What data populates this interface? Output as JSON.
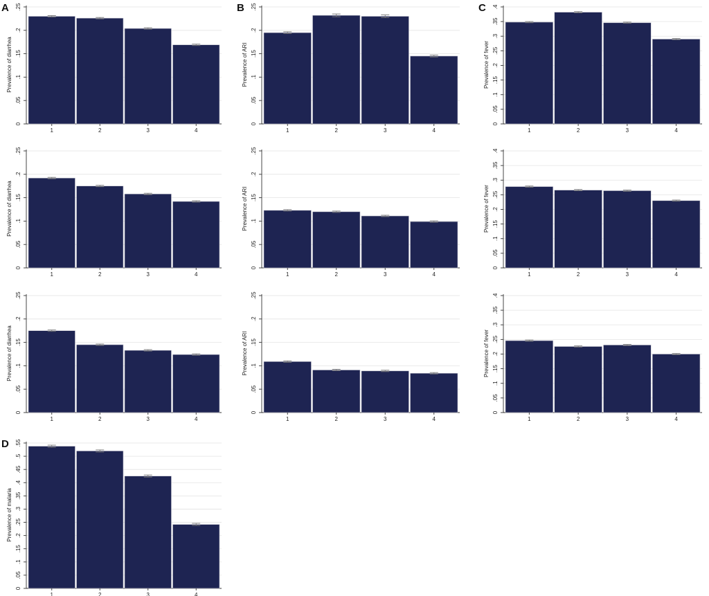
{
  "colors": {
    "bar": "#1e2452",
    "error_bar": "#777777",
    "grid": "#e3e3e3"
  },
  "chart_data": [
    {
      "id": "A1",
      "panel_letter": "A",
      "type": "bar",
      "ylabel": "Prevalence of diarrhea",
      "categories": [
        "1",
        "2",
        "3",
        "4"
      ],
      "values": [
        0.23,
        0.226,
        0.204,
        0.169
      ],
      "errors": [
        0.0015,
        0.0015,
        0.0015,
        0.0015
      ],
      "ylim": [
        0,
        0.25
      ],
      "yticks": [
        0,
        0.05,
        0.1,
        0.15,
        0.2,
        0.25
      ],
      "ytick_labels": [
        "0",
        ".05",
        ".1",
        ".15",
        ".2",
        ".25"
      ],
      "grid": true
    },
    {
      "id": "B1",
      "panel_letter": "B",
      "type": "bar",
      "ylabel": "Prevalence of ARI",
      "categories": [
        "1",
        "2",
        "3",
        "4"
      ],
      "values": [
        0.195,
        0.232,
        0.23,
        0.145
      ],
      "errors": [
        0.002,
        0.003,
        0.003,
        0.002
      ],
      "ylim": [
        0,
        0.25
      ],
      "yticks": [
        0,
        0.05,
        0.1,
        0.15,
        0.2,
        0.25
      ],
      "ytick_labels": [
        "0",
        ".05",
        ".1",
        ".15",
        ".2",
        ".25"
      ],
      "grid": true
    },
    {
      "id": "C1",
      "panel_letter": "C",
      "type": "bar",
      "ylabel": "Prevalence of fever",
      "categories": [
        "1",
        "2",
        "3",
        "4"
      ],
      "values": [
        0.348,
        0.382,
        0.346,
        0.29
      ],
      "errors": [
        0.002,
        0.002,
        0.002,
        0.002
      ],
      "ylim": [
        0,
        0.4
      ],
      "yticks": [
        0,
        0.05,
        0.1,
        0.15,
        0.2,
        0.25,
        0.3,
        0.35,
        0.4
      ],
      "ytick_labels": [
        "0",
        ".05",
        ".1",
        ".15",
        ".2",
        ".25",
        ".3",
        ".35",
        ".4"
      ],
      "grid": true
    },
    {
      "id": "A2",
      "panel_letter": "",
      "type": "bar",
      "ylabel": "Prevalence of diarrhea",
      "categories": [
        "1",
        "2",
        "3",
        "4"
      ],
      "values": [
        0.192,
        0.175,
        0.158,
        0.142
      ],
      "errors": [
        0.0015,
        0.0015,
        0.0015,
        0.0015
      ],
      "ylim": [
        0,
        0.25
      ],
      "yticks": [
        0,
        0.05,
        0.1,
        0.15,
        0.2,
        0.25
      ],
      "ytick_labels": [
        "0",
        ".05",
        ".1",
        ".15",
        ".2",
        ".25"
      ],
      "grid": true
    },
    {
      "id": "B2",
      "panel_letter": "",
      "type": "bar",
      "ylabel": "Prevalence of ARI",
      "categories": [
        "1",
        "2",
        "3",
        "4"
      ],
      "values": [
        0.123,
        0.12,
        0.111,
        0.099
      ],
      "errors": [
        0.0015,
        0.0015,
        0.0015,
        0.0015
      ],
      "ylim": [
        0,
        0.25
      ],
      "yticks": [
        0,
        0.05,
        0.1,
        0.15,
        0.2,
        0.25
      ],
      "ytick_labels": [
        "0",
        ".05",
        ".1",
        ".15",
        ".2",
        ".25"
      ],
      "grid": true
    },
    {
      "id": "C2",
      "panel_letter": "",
      "type": "bar",
      "ylabel": "Prevalence of fever",
      "categories": [
        "1",
        "2",
        "3",
        "4"
      ],
      "values": [
        0.278,
        0.266,
        0.264,
        0.23
      ],
      "errors": [
        0.002,
        0.002,
        0.002,
        0.002
      ],
      "ylim": [
        0,
        0.4
      ],
      "yticks": [
        0,
        0.05,
        0.1,
        0.15,
        0.2,
        0.25,
        0.3,
        0.35,
        0.4
      ],
      "ytick_labels": [
        "0",
        ".05",
        ".1",
        ".15",
        ".2",
        ".25",
        ".3",
        ".35",
        ".4"
      ],
      "grid": true
    },
    {
      "id": "A3",
      "panel_letter": "",
      "type": "bar",
      "ylabel": "Prevalence of diarrhea",
      "categories": [
        "1",
        "2",
        "3",
        "4"
      ],
      "values": [
        0.175,
        0.145,
        0.133,
        0.124
      ],
      "errors": [
        0.0015,
        0.0015,
        0.0015,
        0.0015
      ],
      "ylim": [
        0,
        0.25
      ],
      "yticks": [
        0,
        0.05,
        0.1,
        0.15,
        0.2,
        0.25
      ],
      "ytick_labels": [
        "0",
        ".05",
        ".1",
        ".15",
        ".2",
        ".25"
      ],
      "grid": true
    },
    {
      "id": "B3",
      "panel_letter": "",
      "type": "bar",
      "ylabel": "Prevalence of ARI",
      "categories": [
        "1",
        "2",
        "3",
        "4"
      ],
      "values": [
        0.109,
        0.091,
        0.089,
        0.084
      ],
      "errors": [
        0.0015,
        0.0015,
        0.0015,
        0.0015
      ],
      "ylim": [
        0,
        0.25
      ],
      "yticks": [
        0,
        0.05,
        0.1,
        0.15,
        0.2,
        0.25
      ],
      "ytick_labels": [
        "0",
        ".05",
        ".1",
        ".15",
        ".2",
        ".25"
      ],
      "grid": true
    },
    {
      "id": "C3",
      "panel_letter": "",
      "type": "bar",
      "ylabel": "Prevalence of fever",
      "categories": [
        "1",
        "2",
        "3",
        "4"
      ],
      "values": [
        0.246,
        0.226,
        0.231,
        0.2
      ],
      "errors": [
        0.002,
        0.002,
        0.002,
        0.002
      ],
      "ylim": [
        0,
        0.4
      ],
      "yticks": [
        0,
        0.05,
        0.1,
        0.15,
        0.2,
        0.25,
        0.3,
        0.35,
        0.4
      ],
      "ytick_labels": [
        "0",
        ".05",
        ".1",
        ".15",
        ".2",
        ".25",
        ".3",
        ".35",
        ".4"
      ],
      "grid": true
    },
    {
      "id": "D1",
      "panel_letter": "D",
      "type": "bar",
      "ylabel": "Prevalence of malaria",
      "categories": [
        "1",
        "2",
        "3",
        "4"
      ],
      "values": [
        0.538,
        0.52,
        0.425,
        0.242
      ],
      "errors": [
        0.004,
        0.004,
        0.004,
        0.004
      ],
      "ylim": [
        0,
        0.55
      ],
      "yticks": [
        0,
        0.05,
        0.1,
        0.15,
        0.2,
        0.25,
        0.3,
        0.35,
        0.4,
        0.45,
        0.5,
        0.55
      ],
      "ytick_labels": [
        "0",
        ".05",
        ".1",
        ".15",
        ".2",
        ".25",
        ".3",
        ".35",
        ".4",
        ".45",
        ".5",
        ".55"
      ],
      "grid": true
    }
  ]
}
